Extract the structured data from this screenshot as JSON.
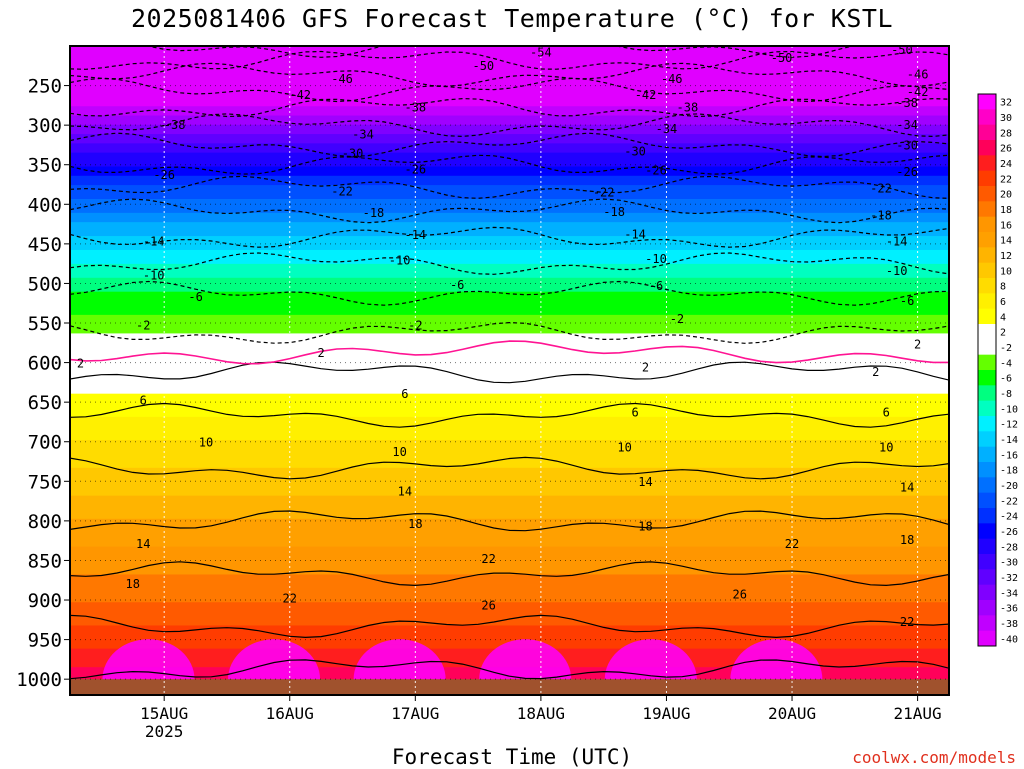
{
  "title": "2025081406 GFS Forecast Temperature (°C) for KSTL",
  "footer": {
    "xlabel": "Forecast Time (UTC)",
    "watermark": "coolwx.com/models"
  },
  "chart_data": {
    "type": "heatmap",
    "title": "2025081406 GFS Forecast Temperature (°C) for KSTL",
    "xlabel": "Forecast Time (UTC)",
    "ylabel": "",
    "x_range_hours_from_2025-08-14T00Z": [
      6,
      174
    ],
    "x_ticks": [
      {
        "day": 15,
        "label": "15AUG",
        "sub": "2025"
      },
      {
        "day": 16,
        "label": "16AUG",
        "sub": ""
      },
      {
        "day": 17,
        "label": "17AUG",
        "sub": ""
      },
      {
        "day": 18,
        "label": "18AUG",
        "sub": ""
      },
      {
        "day": 19,
        "label": "19AUG",
        "sub": ""
      },
      {
        "day": 20,
        "label": "20AUG",
        "sub": ""
      },
      {
        "day": 21,
        "label": "21AUG",
        "sub": ""
      }
    ],
    "y_axis": {
      "unit": "hPa",
      "direction": "reversed",
      "range": [
        1020,
        200
      ],
      "ticks": [
        250,
        300,
        350,
        400,
        450,
        500,
        550,
        600,
        650,
        700,
        750,
        800,
        850,
        900,
        950,
        1000
      ]
    },
    "ground_level_hPa": 1000,
    "grid": "dotted",
    "colorbar": {
      "placement": "right",
      "levels": [
        32,
        30,
        28,
        26,
        24,
        22,
        20,
        18,
        16,
        14,
        12,
        10,
        8,
        6,
        4,
        2,
        -2,
        -4,
        -6,
        -8,
        -10,
        -12,
        -14,
        -16,
        -18,
        -20,
        -22,
        -24,
        -26,
        -28,
        -30,
        -32,
        -34,
        -36,
        -38,
        -40
      ],
      "colors": [
        "#ff00ff",
        "#ff00c8",
        "#ff0096",
        "#ff005a",
        "#ff1e1e",
        "#ff3c00",
        "#ff5a00",
        "#ff7800",
        "#ff9600",
        "#ffa000",
        "#ffb400",
        "#ffc800",
        "#ffdc00",
        "#fff000",
        "#ffff00",
        "#ffffff",
        "#ffffff",
        "#64ff00",
        "#00ff00",
        "#00ff80",
        "#00ffc0",
        "#00f0ff",
        "#00d0ff",
        "#00b0ff",
        "#0090ff",
        "#0070ff",
        "#0050ff",
        "#0030ff",
        "#0000ff",
        "#2000ff",
        "#4000ff",
        "#6000ff",
        "#8000ff",
        "#a000ff",
        "#c000ff",
        "#e000ff"
      ]
    },
    "isotherm_profile": [
      {
        "hPa": 1000,
        "tC": 27
      },
      {
        "hPa": 950,
        "tC": 23
      },
      {
        "hPa": 900,
        "tC": 20
      },
      {
        "hPa": 850,
        "tC": 17
      },
      {
        "hPa": 800,
        "tC": 14
      },
      {
        "hPa": 750,
        "tC": 11
      },
      {
        "hPa": 700,
        "tC": 8
      },
      {
        "hPa": 650,
        "tC": 5
      },
      {
        "hPa": 600,
        "tC": 1
      },
      {
        "hPa": 550,
        "tC": -3
      },
      {
        "hPa": 500,
        "tC": -7
      },
      {
        "hPa": 450,
        "tC": -13
      },
      {
        "hPa": 400,
        "tC": -19
      },
      {
        "hPa": 350,
        "tC": -26
      },
      {
        "hPa": 300,
        "tC": -34
      },
      {
        "hPa": 250,
        "tC": -43
      },
      {
        "hPa": 200,
        "tC": -54
      }
    ],
    "contour_labels": [
      {
        "text": "-54",
        "hour": 96,
        "hPa": 208
      },
      {
        "text": "-50",
        "hour": 85,
        "hPa": 225
      },
      {
        "text": "-50",
        "hour": 142,
        "hPa": 215
      },
      {
        "text": "-50",
        "hour": 165,
        "hPa": 205
      },
      {
        "text": "-46",
        "hour": 58,
        "hPa": 242
      },
      {
        "text": "-46",
        "hour": 121,
        "hPa": 242
      },
      {
        "text": "-46",
        "hour": 168,
        "hPa": 236
      },
      {
        "text": "-42",
        "hour": 50,
        "hPa": 262
      },
      {
        "text": "-42",
        "hour": 116,
        "hPa": 262
      },
      {
        "text": "-42",
        "hour": 168,
        "hPa": 258
      },
      {
        "text": "-38",
        "hour": 72,
        "hPa": 278
      },
      {
        "text": "-38",
        "hour": 124,
        "hPa": 278
      },
      {
        "text": "-38",
        "hour": 166,
        "hPa": 272
      },
      {
        "text": "-38",
        "hour": 26,
        "hPa": 300
      },
      {
        "text": "-34",
        "hour": 62,
        "hPa": 312
      },
      {
        "text": "-34",
        "hour": 120,
        "hPa": 305
      },
      {
        "text": "-34",
        "hour": 166,
        "hPa": 300
      },
      {
        "text": "-30",
        "hour": 60,
        "hPa": 336
      },
      {
        "text": "-30",
        "hour": 114,
        "hPa": 333
      },
      {
        "text": "-30",
        "hour": 166,
        "hPa": 326
      },
      {
        "text": "-26",
        "hour": 24,
        "hPa": 363
      },
      {
        "text": "-26",
        "hour": 72,
        "hPa": 356
      },
      {
        "text": "-26",
        "hour": 118,
        "hPa": 357
      },
      {
        "text": "-26",
        "hour": 166,
        "hPa": 359
      },
      {
        "text": "-22",
        "hour": 58,
        "hPa": 384
      },
      {
        "text": "-22",
        "hour": 108,
        "hPa": 385
      },
      {
        "text": "-22",
        "hour": 161,
        "hPa": 380
      },
      {
        "text": "-18",
        "hour": 64,
        "hPa": 411
      },
      {
        "text": "-18",
        "hour": 110,
        "hPa": 410
      },
      {
        "text": "-18",
        "hour": 161,
        "hPa": 414
      },
      {
        "text": "-14",
        "hour": 22,
        "hPa": 447
      },
      {
        "text": "-14",
        "hour": 72,
        "hPa": 439
      },
      {
        "text": "-14",
        "hour": 114,
        "hPa": 438
      },
      {
        "text": "-14",
        "hour": 164,
        "hPa": 447
      },
      {
        "text": "-10",
        "hour": 22,
        "hPa": 490
      },
      {
        "text": "-10",
        "hour": 69,
        "hPa": 471
      },
      {
        "text": "-10",
        "hour": 118,
        "hPa": 469
      },
      {
        "text": "-10",
        "hour": 164,
        "hPa": 484
      },
      {
        "text": "-6",
        "hour": 30,
        "hPa": 517
      },
      {
        "text": "-6",
        "hour": 80,
        "hPa": 502
      },
      {
        "text": "-6",
        "hour": 118,
        "hPa": 503
      },
      {
        "text": "-6",
        "hour": 166,
        "hPa": 522
      },
      {
        "text": "-2",
        "hour": 20,
        "hPa": 553
      },
      {
        "text": "-2",
        "hour": 72,
        "hPa": 553
      },
      {
        "text": "-2",
        "hour": 122,
        "hPa": 545
      },
      {
        "text": "2",
        "hour": 8,
        "hPa": 601
      },
      {
        "text": "2",
        "hour": 54,
        "hPa": 588
      },
      {
        "text": "2",
        "hour": 116,
        "hPa": 606
      },
      {
        "text": "2",
        "hour": 168,
        "hPa": 577
      },
      {
        "text": "2",
        "hour": 160,
        "hPa": 612
      },
      {
        "text": "6",
        "hour": 20,
        "hPa": 648
      },
      {
        "text": "6",
        "hour": 70,
        "hPa": 640
      },
      {
        "text": "6",
        "hour": 114,
        "hPa": 663
      },
      {
        "text": "6",
        "hour": 162,
        "hPa": 663
      },
      {
        "text": "10",
        "hour": 32,
        "hPa": 701
      },
      {
        "text": "10",
        "hour": 69,
        "hPa": 713
      },
      {
        "text": "10",
        "hour": 112,
        "hPa": 707
      },
      {
        "text": "10",
        "hour": 162,
        "hPa": 707
      },
      {
        "text": "14",
        "hour": 70,
        "hPa": 763
      },
      {
        "text": "14",
        "hour": 116,
        "hPa": 751
      },
      {
        "text": "14",
        "hour": 166,
        "hPa": 758
      },
      {
        "text": "14",
        "hour": 20,
        "hPa": 829
      },
      {
        "text": "18",
        "hour": 72,
        "hPa": 804
      },
      {
        "text": "18",
        "hour": 116,
        "hPa": 807
      },
      {
        "text": "18",
        "hour": 166,
        "hPa": 824
      },
      {
        "text": "18",
        "hour": 18,
        "hPa": 880
      },
      {
        "text": "22",
        "hour": 86,
        "hPa": 848
      },
      {
        "text": "22",
        "hour": 144,
        "hPa": 829
      },
      {
        "text": "22",
        "hour": 48,
        "hPa": 898
      },
      {
        "text": "22",
        "hour": 166,
        "hPa": 928
      },
      {
        "text": "26",
        "hour": 86,
        "hPa": 907
      },
      {
        "text": "26",
        "hour": 134,
        "hPa": 893
      }
    ]
  }
}
